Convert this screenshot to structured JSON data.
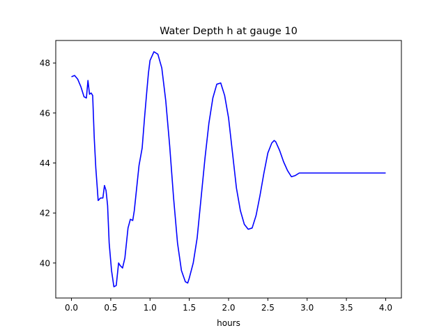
{
  "chart_data": {
    "type": "line",
    "title": "Water Depth h at gauge 10",
    "xlabel": "hours",
    "ylabel": "",
    "xlim": [
      -0.2,
      4.2
    ],
    "ylim": [
      38.6,
      48.9
    ],
    "xticks": [
      0.0,
      0.5,
      1.0,
      1.5,
      2.0,
      2.5,
      3.0,
      3.5,
      4.0
    ],
    "xtick_labels": [
      "0.0",
      "0.5",
      "1.0",
      "1.5",
      "2.0",
      "2.5",
      "3.0",
      "3.5",
      "4.0"
    ],
    "yticks": [
      40,
      42,
      44,
      46,
      48
    ],
    "ytick_labels": [
      "40",
      "42",
      "44",
      "46",
      "48"
    ],
    "grid": false,
    "series": [
      {
        "color": "#0000ff",
        "x": [
          0.0,
          0.04,
          0.08,
          0.12,
          0.16,
          0.19,
          0.21,
          0.23,
          0.25,
          0.27,
          0.29,
          0.31,
          0.34,
          0.37,
          0.4,
          0.42,
          0.44,
          0.46,
          0.48,
          0.51,
          0.54,
          0.57,
          0.6,
          0.62,
          0.65,
          0.68,
          0.7,
          0.72,
          0.75,
          0.78,
          0.8,
          0.83,
          0.86,
          0.9,
          0.93,
          0.96,
          0.98,
          1.0,
          1.05,
          1.1,
          1.15,
          1.2,
          1.25,
          1.3,
          1.35,
          1.4,
          1.45,
          1.48,
          1.5,
          1.55,
          1.6,
          1.65,
          1.7,
          1.75,
          1.8,
          1.85,
          1.9,
          1.95,
          2.0,
          2.05,
          2.1,
          2.15,
          2.2,
          2.25,
          2.3,
          2.35,
          2.4,
          2.45,
          2.5,
          2.55,
          2.58,
          2.6,
          2.65,
          2.7,
          2.75,
          2.8,
          2.85,
          2.9,
          2.95,
          3.0,
          3.05,
          3.1,
          3.15,
          3.2,
          3.25,
          3.3,
          3.35,
          3.4,
          3.45,
          3.5,
          3.55,
          3.6,
          3.65,
          3.7,
          3.75,
          3.8,
          3.85,
          3.9,
          3.95,
          4.0
        ],
        "y": [
          47.45,
          47.5,
          47.35,
          47.05,
          46.65,
          46.6,
          47.3,
          46.75,
          46.8,
          46.7,
          45.0,
          43.8,
          42.5,
          42.6,
          42.6,
          43.1,
          42.9,
          42.3,
          40.8,
          39.7,
          39.05,
          39.1,
          40.0,
          39.9,
          39.8,
          40.2,
          40.8,
          41.4,
          41.75,
          41.7,
          42.1,
          43.0,
          43.9,
          44.6,
          45.8,
          46.9,
          47.6,
          48.1,
          48.45,
          48.35,
          47.8,
          46.5,
          44.7,
          42.6,
          40.8,
          39.7,
          39.25,
          39.2,
          39.4,
          40.0,
          41.0,
          42.6,
          44.2,
          45.6,
          46.6,
          47.15,
          47.2,
          46.7,
          45.8,
          44.4,
          43.0,
          42.1,
          41.55,
          41.35,
          41.4,
          41.9,
          42.7,
          43.6,
          44.4,
          44.8,
          44.9,
          44.85,
          44.5,
          44.05,
          43.7,
          43.45,
          43.5,
          43.6,
          43.6,
          43.6,
          43.6,
          43.6,
          43.6,
          43.6,
          43.6,
          43.6,
          43.6,
          43.6,
          43.6,
          43.6,
          43.6,
          43.6,
          43.6,
          43.6,
          43.6,
          43.6,
          43.6,
          43.6,
          43.6,
          43.6
        ]
      }
    ]
  }
}
